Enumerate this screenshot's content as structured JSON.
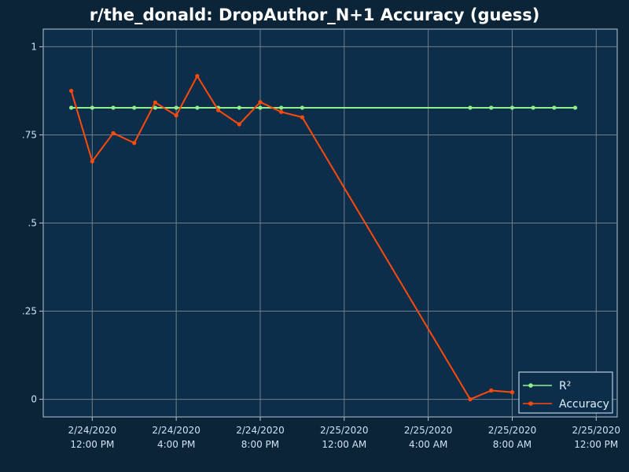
{
  "chart_data": {
    "type": "line",
    "title": "r/the_donald: DropAuthor_N+1 Accuracy (guess)",
    "xlabel": "",
    "ylabel": "",
    "ylim": [
      -0.05,
      1.05
    ],
    "xlim": [
      "2020-02-24 09:40",
      "2020-02-25 13:00"
    ],
    "grid": true,
    "legend_position": "bottom-right",
    "y_ticks": [
      {
        "value": 0,
        "label": "0"
      },
      {
        "value": 0.25,
        "label": ".25"
      },
      {
        "value": 0.5,
        "label": ".5"
      },
      {
        "value": 0.75,
        "label": ".75"
      },
      {
        "value": 1,
        "label": "1"
      }
    ],
    "x_ticks": [
      {
        "value": "2020-02-24 12:00",
        "line1": "2/24/2020",
        "line2": "12:00 PM"
      },
      {
        "value": "2020-02-24 16:00",
        "line1": "2/24/2020",
        "line2": "4:00 PM"
      },
      {
        "value": "2020-02-24 20:00",
        "line1": "2/24/2020",
        "line2": "8:00 PM"
      },
      {
        "value": "2020-02-25 00:00",
        "line1": "2/25/2020",
        "line2": "12:00 AM"
      },
      {
        "value": "2020-02-25 04:00",
        "line1": "2/25/2020",
        "line2": "4:00 AM"
      },
      {
        "value": "2020-02-25 08:00",
        "line1": "2/25/2020",
        "line2": "8:00 AM"
      },
      {
        "value": "2020-02-25 12:00",
        "line1": "2/25/2020",
        "line2": "12:00 PM"
      }
    ],
    "series": [
      {
        "name": "R²",
        "color": "#8ef08a",
        "points": [
          {
            "x": "2020-02-24 11:00",
            "y": 0.827
          },
          {
            "x": "2020-02-24 12:00",
            "y": 0.827
          },
          {
            "x": "2020-02-24 13:00",
            "y": 0.827
          },
          {
            "x": "2020-02-24 14:00",
            "y": 0.827
          },
          {
            "x": "2020-02-24 15:00",
            "y": 0.827
          },
          {
            "x": "2020-02-24 16:00",
            "y": 0.827
          },
          {
            "x": "2020-02-24 17:00",
            "y": 0.827
          },
          {
            "x": "2020-02-24 18:00",
            "y": 0.827
          },
          {
            "x": "2020-02-24 19:00",
            "y": 0.827
          },
          {
            "x": "2020-02-24 20:00",
            "y": 0.827
          },
          {
            "x": "2020-02-24 21:00",
            "y": 0.827
          },
          {
            "x": "2020-02-24 22:00",
            "y": 0.827
          },
          {
            "x": "2020-02-25 06:00",
            "y": 0.827
          },
          {
            "x": "2020-02-25 07:00",
            "y": 0.827
          },
          {
            "x": "2020-02-25 08:00",
            "y": 0.827
          },
          {
            "x": "2020-02-25 09:00",
            "y": 0.827
          },
          {
            "x": "2020-02-25 10:00",
            "y": 0.827
          },
          {
            "x": "2020-02-25 11:00",
            "y": 0.827
          }
        ]
      },
      {
        "name": "Accuracy",
        "color": "#ff4a0a",
        "points": [
          {
            "x": "2020-02-24 11:00",
            "y": 0.875
          },
          {
            "x": "2020-02-24 12:00",
            "y": 0.675
          },
          {
            "x": "2020-02-24 13:00",
            "y": 0.755
          },
          {
            "x": "2020-02-24 14:00",
            "y": 0.727
          },
          {
            "x": "2020-02-24 15:00",
            "y": 0.842
          },
          {
            "x": "2020-02-24 16:00",
            "y": 0.805
          },
          {
            "x": "2020-02-24 17:00",
            "y": 0.917
          },
          {
            "x": "2020-02-24 18:00",
            "y": 0.82
          },
          {
            "x": "2020-02-24 19:00",
            "y": 0.78
          },
          {
            "x": "2020-02-24 20:00",
            "y": 0.843
          },
          {
            "x": "2020-02-24 21:00",
            "y": 0.815
          },
          {
            "x": "2020-02-24 22:00",
            "y": 0.8
          },
          {
            "x": "2020-02-25 06:00",
            "y": 0.0
          },
          {
            "x": "2020-02-25 07:00",
            "y": 0.025
          },
          {
            "x": "2020-02-25 08:00",
            "y": 0.02
          }
        ]
      }
    ]
  },
  "colors": {
    "background": "#0b2438",
    "plot_area": "#0d2e4a",
    "grid": "#6f7f8c",
    "text": "#cfe3f2"
  }
}
